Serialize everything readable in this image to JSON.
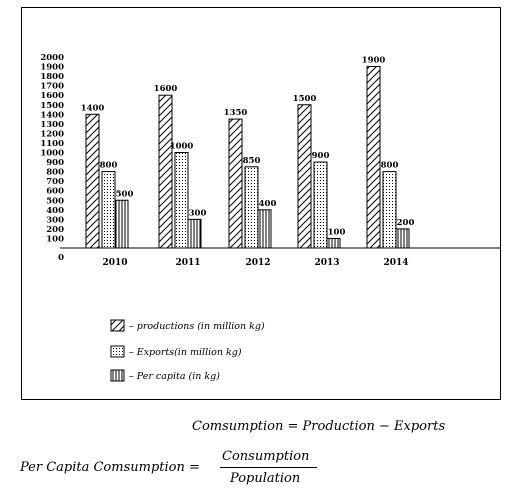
{
  "chart_data": {
    "type": "bar",
    "categories": [
      "2010",
      "2011",
      "2012",
      "2013",
      "2014"
    ],
    "series": [
      {
        "name": "– productions (in million kg)",
        "pattern": "diagonal-hatch",
        "values": [
          1400,
          1600,
          1350,
          1500,
          1900
        ]
      },
      {
        "name": "– Exports(in million kg)",
        "pattern": "dotted",
        "values": [
          800,
          1000,
          850,
          900,
          800
        ]
      },
      {
        "name": "– Per capita (in kg)",
        "pattern": "vertical-lines",
        "values": [
          500,
          300,
          400,
          100,
          200
        ]
      }
    ],
    "y_ticks": [
      "0",
      "100",
      "200",
      "300",
      "400",
      "500",
      "600",
      "700",
      "800",
      "900",
      "1000",
      "1100",
      "1200",
      "1300",
      "1400",
      "1500",
      "1600",
      "1700",
      "1800",
      "1900",
      "2000"
    ],
    "ylim": [
      0,
      2000
    ],
    "grid": false,
    "legend_position": "bottom-left",
    "colors": {
      "ink": "#000000",
      "fill": "#ffffff"
    }
  },
  "formulas": {
    "consumption": "Comsumption = Production − Exports",
    "per_capita_lhs": "Per Capita Comsumption =",
    "per_capita_numerator": "Consumption",
    "per_capita_denominator": "Population"
  }
}
